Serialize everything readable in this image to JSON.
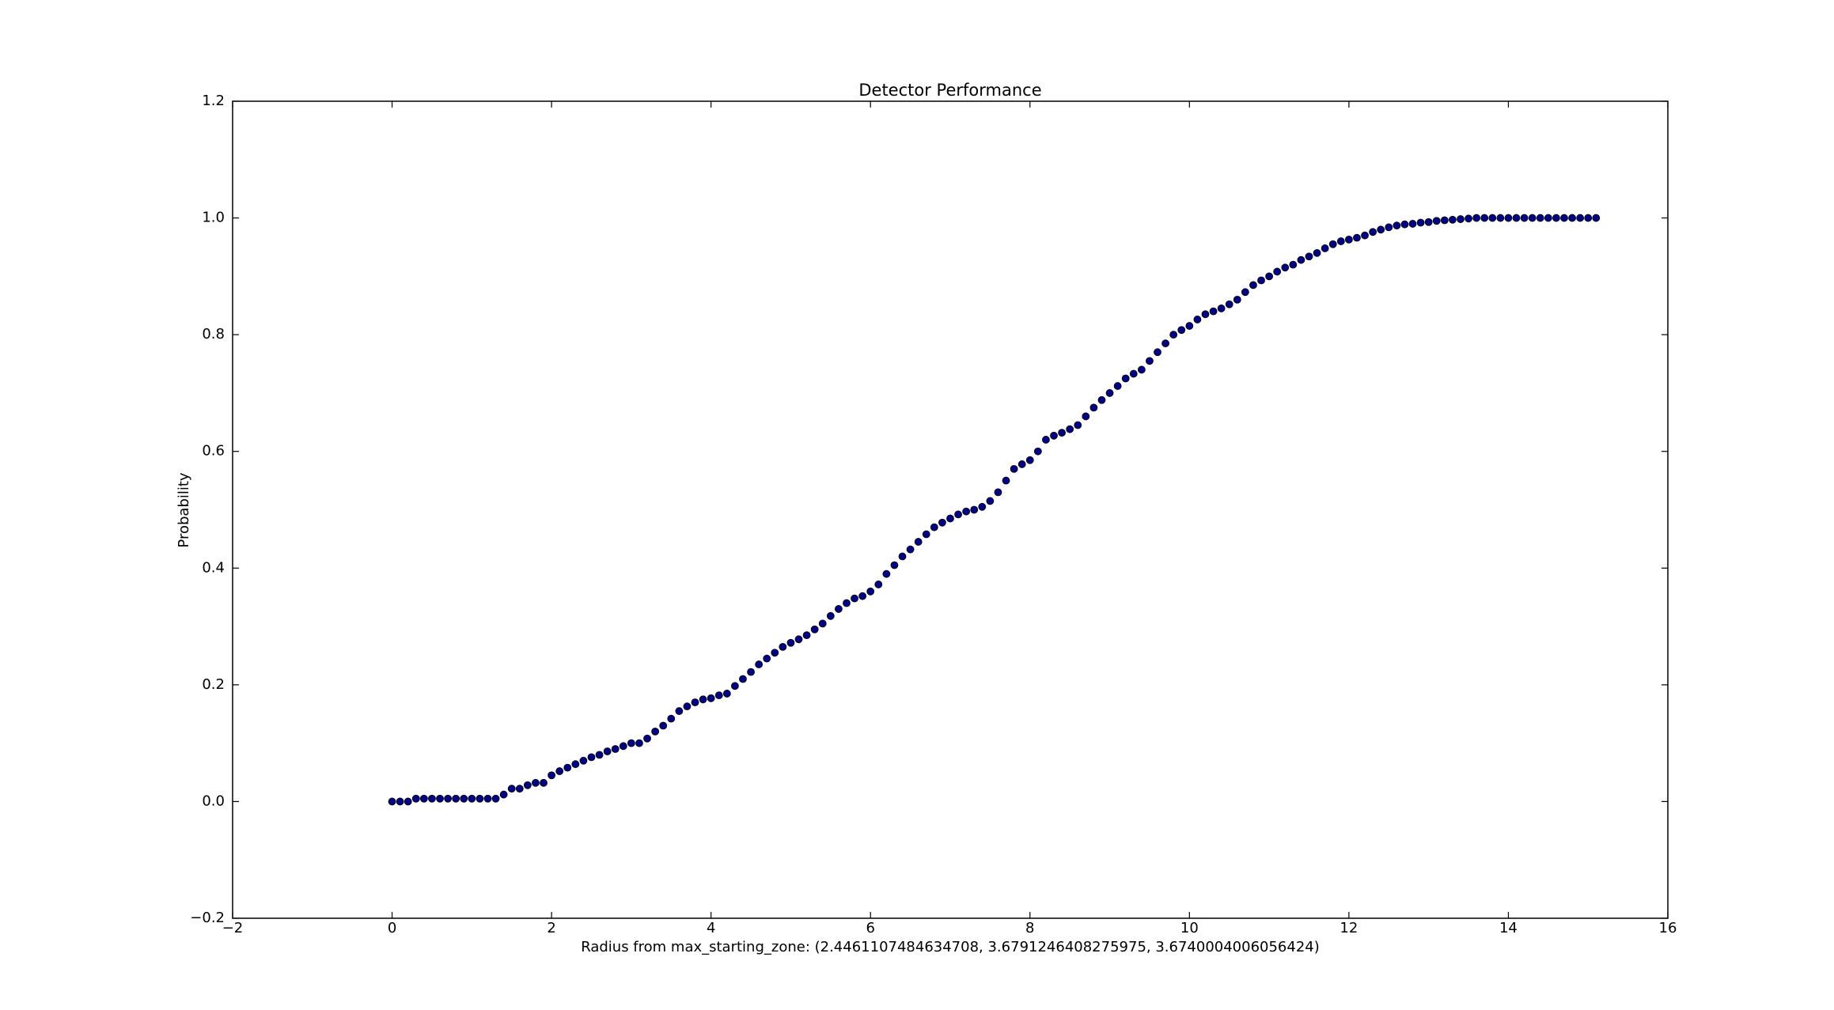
{
  "chart_data": {
    "type": "scatter",
    "title": "Detector Performance",
    "xlabel": "Radius from max_starting_zone: (2.4461107484634708, 3.6791246408275975, 3.6740004006056424)",
    "ylabel": "Probability",
    "xlim": [
      -2,
      16
    ],
    "ylim": [
      -0.2,
      1.2
    ],
    "xticks": [
      {
        "value": -2,
        "label": "−2"
      },
      0,
      2,
      4,
      6,
      8,
      10,
      12,
      14,
      16
    ],
    "yticks": [
      {
        "value": -0.2,
        "label": "−0.2"
      },
      {
        "value": 0,
        "label": "0.0"
      },
      0.2,
      0.4,
      0.6,
      0.8,
      {
        "value": 1,
        "label": "1.0"
      },
      1.2
    ],
    "grid": false,
    "series": [
      {
        "color": "#000080",
        "x": [
          0.0,
          0.1,
          0.2,
          0.3,
          0.4,
          0.5,
          0.6,
          0.7,
          0.8,
          0.9,
          1.0,
          1.1,
          1.2,
          1.3,
          1.4,
          1.5,
          1.6,
          1.7,
          1.8,
          1.9,
          2.0,
          2.1,
          2.2,
          2.3,
          2.4,
          2.5,
          2.6,
          2.7,
          2.8,
          2.9,
          3.0,
          3.1,
          3.2,
          3.3,
          3.4,
          3.5,
          3.6,
          3.7,
          3.8,
          3.9,
          4.0,
          4.1,
          4.2,
          4.3,
          4.4,
          4.5,
          4.6,
          4.7,
          4.8,
          4.9,
          5.0,
          5.1,
          5.2,
          5.3,
          5.4,
          5.5,
          5.6,
          5.7,
          5.8,
          5.9,
          6.0,
          6.1,
          6.2,
          6.3,
          6.4,
          6.5,
          6.6,
          6.7,
          6.8,
          6.9,
          7.0,
          7.1,
          7.2,
          7.3,
          7.4,
          7.5,
          7.6,
          7.7,
          7.8,
          7.9,
          8.0,
          8.1,
          8.2,
          8.3,
          8.4,
          8.5,
          8.6,
          8.7,
          8.8,
          8.9,
          9.0,
          9.1,
          9.2,
          9.3,
          9.4,
          9.5,
          9.6,
          9.7,
          9.8,
          9.9,
          10.0,
          10.1,
          10.2,
          10.3,
          10.4,
          10.5,
          10.6,
          10.7,
          10.8,
          10.9,
          11.0,
          11.1,
          11.2,
          11.3,
          11.4,
          11.5,
          11.6,
          11.7,
          11.8,
          11.9,
          12.0,
          12.1,
          12.2,
          12.3,
          12.4,
          12.5,
          12.6,
          12.7,
          12.8,
          12.9,
          13.0,
          13.1,
          13.2,
          13.3,
          13.4,
          13.5,
          13.6,
          13.7,
          13.8,
          13.9,
          14.0,
          14.1,
          14.2,
          14.3,
          14.4,
          14.5,
          14.6,
          14.7,
          14.8,
          14.9,
          15.0,
          15.1
        ],
        "values": [
          0,
          0,
          0,
          0.005,
          0.005,
          0.005,
          0.005,
          0.005,
          0.005,
          0.005,
          0.005,
          0.005,
          0.005,
          0.005,
          0.012,
          0.022,
          0.022,
          0.028,
          0.032,
          0.032,
          0.045,
          0.052,
          0.058,
          0.064,
          0.07,
          0.076,
          0.08,
          0.086,
          0.09,
          0.095,
          0.1,
          0.1,
          0.108,
          0.12,
          0.13,
          0.142,
          0.155,
          0.163,
          0.17,
          0.175,
          0.177,
          0.182,
          0.185,
          0.198,
          0.21,
          0.222,
          0.235,
          0.245,
          0.255,
          0.265,
          0.272,
          0.278,
          0.285,
          0.295,
          0.305,
          0.318,
          0.33,
          0.34,
          0.348,
          0.352,
          0.36,
          0.372,
          0.39,
          0.405,
          0.42,
          0.432,
          0.445,
          0.458,
          0.47,
          0.478,
          0.485,
          0.492,
          0.497,
          0.5,
          0.505,
          0.515,
          0.53,
          0.55,
          0.57,
          0.578,
          0.585,
          0.6,
          0.62,
          0.627,
          0.632,
          0.638,
          0.645,
          0.66,
          0.675,
          0.688,
          0.7,
          0.712,
          0.725,
          0.733,
          0.74,
          0.755,
          0.77,
          0.785,
          0.8,
          0.808,
          0.815,
          0.826,
          0.835,
          0.84,
          0.845,
          0.852,
          0.86,
          0.873,
          0.885,
          0.893,
          0.9,
          0.908,
          0.915,
          0.92,
          0.928,
          0.934,
          0.94,
          0.948,
          0.955,
          0.96,
          0.963,
          0.966,
          0.97,
          0.976,
          0.98,
          0.984,
          0.987,
          0.989,
          0.99,
          0.992,
          0.993,
          0.995,
          0.996,
          0.997,
          0.998,
          0.999,
          1,
          1,
          1,
          1,
          1,
          1,
          1,
          1,
          1,
          1,
          1,
          1,
          1,
          1,
          1,
          1
        ]
      }
    ]
  }
}
